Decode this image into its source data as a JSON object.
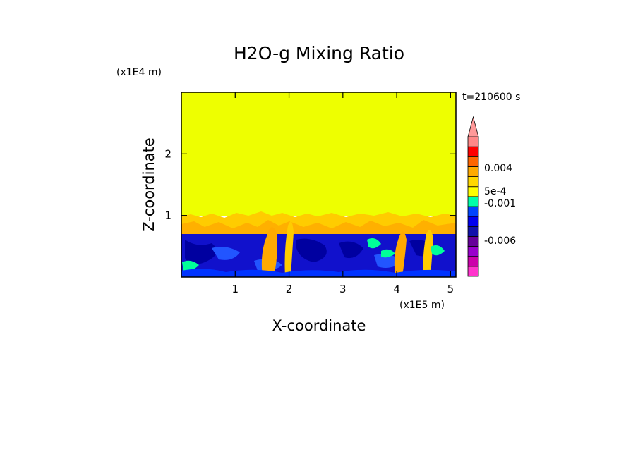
{
  "chart_data": {
    "type": "heatmap",
    "title": "H2O-g Mixing Ratio",
    "xlabel": "X-coordinate",
    "ylabel": "Z-coordinate",
    "x_unit": "(x1E5 m)",
    "y_unit": "(x1E4 m)",
    "time_label": "t=210600 s",
    "xlim": [
      0,
      5.1
    ],
    "ylim": [
      0,
      3.0
    ],
    "x_ticks": [
      "1",
      "2",
      "3",
      "4",
      "5"
    ],
    "x_tick_values": [
      1,
      2,
      3,
      4,
      5
    ],
    "y_ticks": [
      "1",
      "2"
    ],
    "y_tick_values": [
      1,
      2
    ],
    "colorbar": {
      "colors": [
        "#ff33cc",
        "#cc00aa",
        "#9900cc",
        "#660099",
        "#1111aa",
        "#0000ee",
        "#0044ff",
        "#00ffaa",
        "#ffff00",
        "#ffd700",
        "#ffaa00",
        "#ff6600",
        "#ff0000",
        "#ff8888"
      ],
      "tick_labels": [
        "0.004",
        "5e-4",
        "-0.001",
        "-0.006"
      ],
      "extend": "max"
    },
    "regions": [
      {
        "name": "upper",
        "z_range": [
          1.0,
          3.0
        ],
        "color": "#eeff00"
      },
      {
        "name": "transition",
        "z_range": [
          0.7,
          1.0
        ],
        "color": "#ffcc00"
      },
      {
        "name": "lower",
        "z_range": [
          0.0,
          0.7
        ],
        "color": "#1111cc"
      }
    ]
  }
}
